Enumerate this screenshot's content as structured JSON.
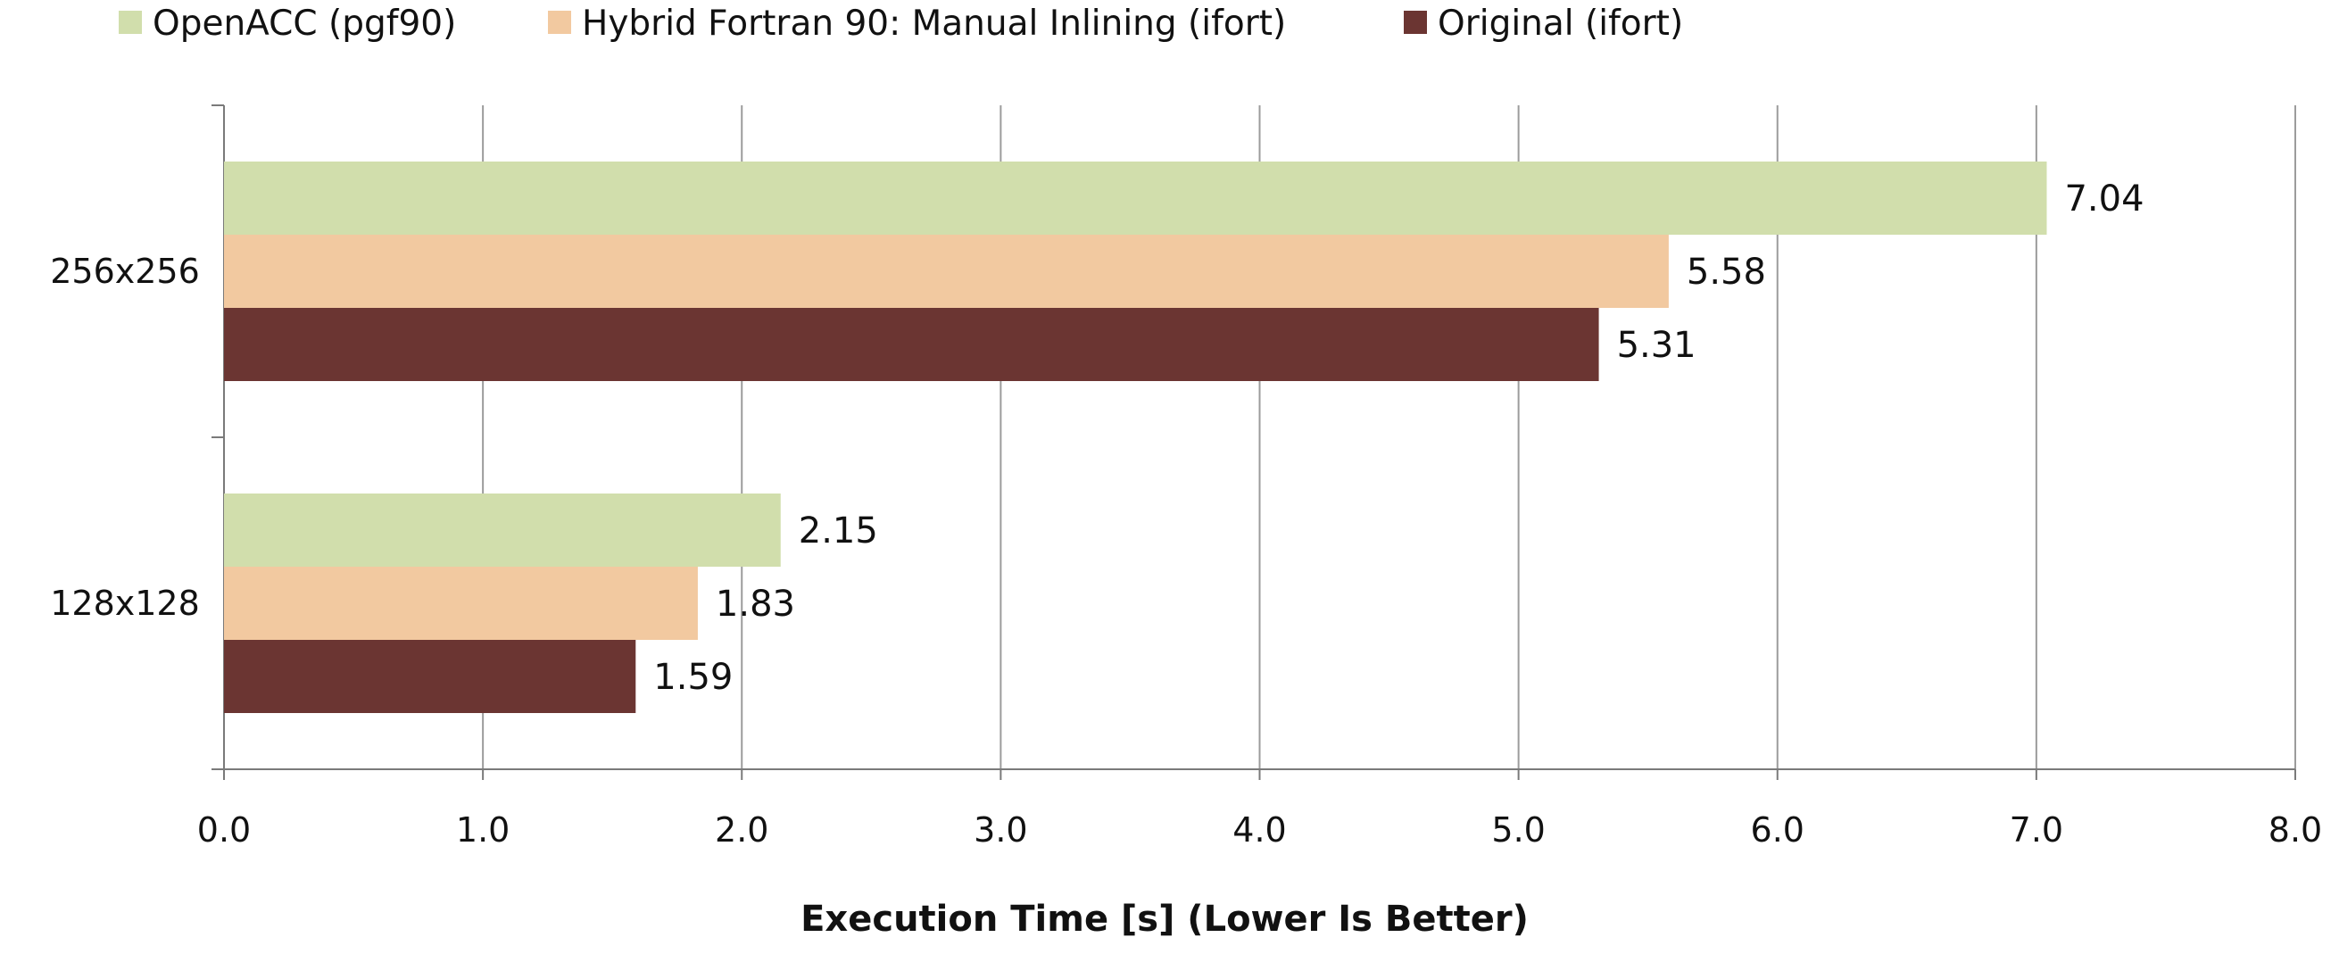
{
  "chart_data": {
    "type": "bar",
    "orientation": "horizontal",
    "categories": [
      "128x128",
      "256x256"
    ],
    "series": [
      {
        "name": "OpenACC (pgf90)",
        "color": "#d1deac",
        "values": [
          2.15,
          7.04
        ]
      },
      {
        "name": "Hybrid Fortran 90: Manual Inlining (ifort)",
        "color": "#f2c9a0",
        "values": [
          1.83,
          5.58
        ]
      },
      {
        "name": "Original (ifort)",
        "color": "#6b3532",
        "values": [
          1.59,
          5.31
        ]
      }
    ],
    "xlabel": "Execution Time [s] (Lower Is Better)",
    "ylabel": "",
    "title": "",
    "xlim": [
      0,
      8
    ],
    "xticks": [
      "0.0",
      "1.0",
      "2.0",
      "3.0",
      "4.0",
      "5.0",
      "6.0",
      "7.0",
      "8.0"
    ],
    "data_labels": {
      "128x128": [
        "2.15",
        "1.83",
        "1.59"
      ],
      "256x256": [
        "7.04",
        "5.58",
        "5.31"
      ]
    },
    "grid": "vertical",
    "legend_position": "top"
  }
}
